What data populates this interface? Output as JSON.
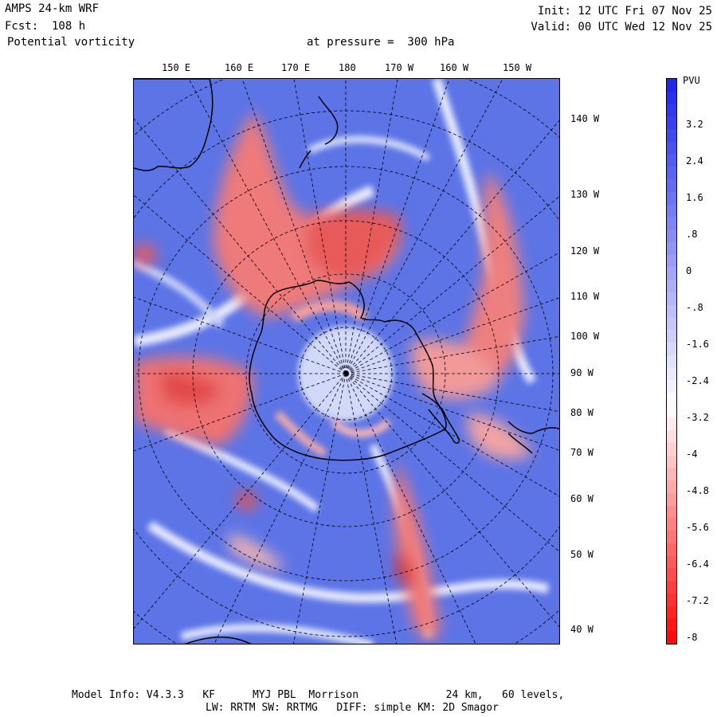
{
  "header": {
    "model": "AMPS 24-km WRF",
    "forecast": "Fcst:  108 h",
    "field": "Potential vorticity",
    "level": "at pressure =  300 hPa",
    "init": "Init: 12 UTC Fri 07 Nov 25",
    "valid": "Valid: 00 UTC Wed 12 Nov 25"
  },
  "map": {
    "projection": "polar-stereographic-south",
    "top_longitude_labels": [
      "150 E",
      "160 E",
      "170 E",
      "180",
      "170 W",
      "160 W",
      "150 W"
    ],
    "right_longitude_labels": [
      "140 W",
      "130 W",
      "120 W",
      "110 W",
      "100 W",
      "90 W",
      "80 W",
      "70 W",
      "60 W",
      "50 W",
      "40 W"
    ],
    "colors": {
      "positive": "#3b55e6",
      "negative": "#e83a3a",
      "neutral": "#ffffff",
      "coastline": "#000000"
    }
  },
  "colorbar": {
    "units": "PVU",
    "labels": [
      "3.2",
      "2.4",
      "1.6",
      ".8",
      "0",
      "-.8",
      "-1.6",
      "-2.4",
      "-3.2",
      "-4",
      "-4.8",
      "-5.6",
      "-6.4",
      "-7.2",
      "-8"
    ],
    "range": [
      -8,
      4
    ]
  },
  "footer": {
    "line1": "Model Info: V4.3.3   KF      MYJ PBL  Morrison              24 km,   60 levels,",
    "line2": "LW: RRTM SW: RRTMG   DIFF: simple KM: 2D Smagor"
  }
}
